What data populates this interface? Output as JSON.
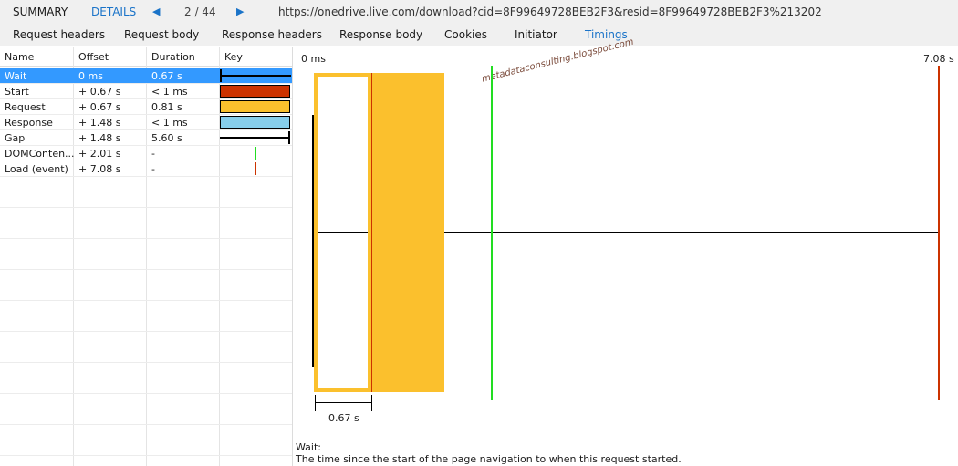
{
  "topbar": {
    "summary": "SUMMARY",
    "details": "DETAILS",
    "prev_icon": "◀",
    "counter": "2 / 44",
    "next_icon": "▶",
    "url": "https://onedrive.live.com/download?cid=8F99649728BEB2F3&resid=8F99649728BEB2F3%213202"
  },
  "subtabs": [
    "Request headers",
    "Request body",
    "Response headers",
    "Response body",
    "Cookies",
    "Initiator",
    "Timings"
  ],
  "table": {
    "headers": [
      "Name",
      "Offset",
      "Duration",
      "Key"
    ],
    "rows": [
      {
        "name": "Wait",
        "offset": "0 ms",
        "duration": "0.67 s"
      },
      {
        "name": "Start",
        "offset": "+ 0.67 s",
        "duration": "< 1 ms"
      },
      {
        "name": "Request",
        "offset": "+ 0.67 s",
        "duration": "0.81 s"
      },
      {
        "name": "Response",
        "offset": "+ 1.48 s",
        "duration": "< 1 ms"
      },
      {
        "name": "Gap",
        "offset": "+ 1.48 s",
        "duration": "5.60 s"
      },
      {
        "name": "DOMConten...",
        "offset": "+ 2.01 s",
        "duration": "-"
      },
      {
        "name": "Load (event)",
        "offset": "+ 7.08 s",
        "duration": "-"
      }
    ]
  },
  "chart": {
    "start_label": "0 ms",
    "end_label": "7.08 s",
    "wait_label": "0.67 s",
    "watermark": "metadataconsulting.blogspot.com"
  },
  "colors": {
    "wait": "#000000",
    "start": "#cc3300",
    "request": "#fbc02d",
    "response": "#87ceeb",
    "dom_content": "#22dd22",
    "load": "#cc3300",
    "selected": "#3399ff"
  },
  "description": {
    "title": "Wait:",
    "text": "The time since the start of the page navigation to when this request started."
  }
}
